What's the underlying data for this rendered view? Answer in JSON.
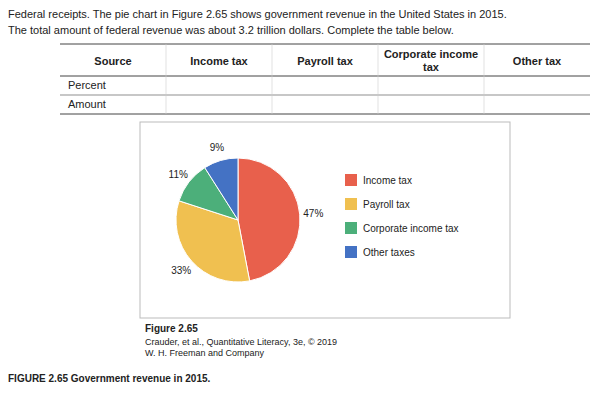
{
  "chart_data": {
    "type": "pie",
    "title": "Federal receipts. The pie chart in Figure 2.65 shows government revenue in the United States in 2015.",
    "subtitle": "The total amount of federal revenue was about 3.2 trillion dollars. Complete the table below.",
    "table": {
      "columns": [
        "Source",
        "Income tax",
        "Payroll tax",
        "Corporate income tax",
        "Other tax"
      ],
      "rows": [
        "Percent",
        "Amount"
      ]
    },
    "categories": [
      "Income tax",
      "Payroll tax",
      "Corporate income tax",
      "Other taxes"
    ],
    "values": [
      47,
      33,
      11,
      9
    ],
    "value_labels": [
      "47%",
      "33%",
      "11%",
      "9%"
    ],
    "colors": [
      "#E8604C",
      "#F0C050",
      "#4CAF7A",
      "#4472C4"
    ],
    "data_labels": true,
    "legend": "right",
    "annotations": [
      "Figure 2.65",
      "Crauder, et al., Quantitative Literacy, 3e, © 2019",
      "W. H. Freeman and Company",
      "FIGURE 2.65 Government revenue in 2015."
    ]
  }
}
